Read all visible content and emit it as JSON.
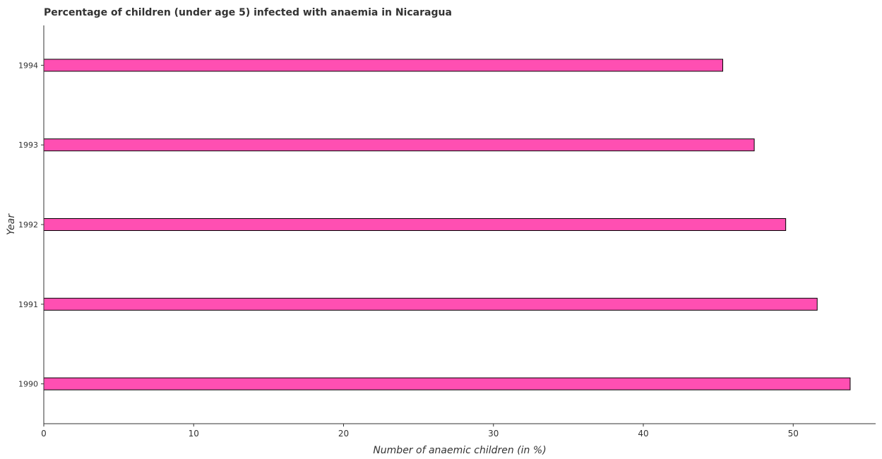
{
  "chart_data": {
    "type": "bar",
    "orientation": "horizontal",
    "title": "Percentage of children (under age 5) infected with anaemia in Nicaragua",
    "xlabel": "Number of anaemic children (in %)",
    "ylabel": "Year",
    "categories": [
      "1990",
      "1991",
      "1992",
      "1993",
      "1994"
    ],
    "values": [
      53.8,
      51.6,
      49.5,
      47.4,
      45.3
    ],
    "xlim": [
      0,
      55.5
    ],
    "xticks": [
      0,
      10,
      20,
      30,
      40,
      50
    ],
    "xtick_labels": [
      "0",
      "10",
      "20",
      "30",
      "40",
      "50"
    ],
    "bar_color": "#ff4fb2",
    "bar_edge_color": "#000000",
    "grid": false,
    "legend": "none"
  }
}
